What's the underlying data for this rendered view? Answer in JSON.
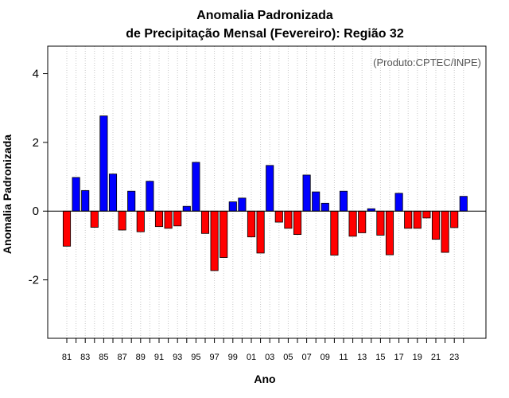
{
  "chart_data": {
    "type": "bar",
    "title": "Anomalia Padronizada",
    "subtitle": "de Precipitação Mensal (Fevereiro): Região 32",
    "xlabel": "Ano",
    "ylabel": "Anomalia Padronizada",
    "credit": "(Produto:CPTEC/INPE)",
    "ylim": [
      -3.7,
      4.8
    ],
    "yticks": [
      -2,
      0,
      2,
      4
    ],
    "ytick_labels": [
      "-2",
      "0",
      "2",
      "4"
    ],
    "grid": "vertical dotted",
    "colors": {
      "positive": "#0000ff",
      "negative": "#ff0000",
      "edge": "#000000",
      "grid": "#c8c8c8"
    },
    "categories": [
      "81",
      "82",
      "83",
      "84",
      "85",
      "86",
      "87",
      "88",
      "89",
      "90",
      "91",
      "92",
      "93",
      "94",
      "95",
      "96",
      "97",
      "98",
      "99",
      "00",
      "01",
      "02",
      "03",
      "04",
      "05",
      "06",
      "07",
      "08",
      "09",
      "10",
      "11",
      "12",
      "13",
      "14",
      "15",
      "16",
      "17",
      "18",
      "19",
      "20",
      "21",
      "22",
      "23",
      "24"
    ],
    "xtick_labels": [
      "81",
      "83",
      "85",
      "87",
      "89",
      "91",
      "93",
      "95",
      "97",
      "99",
      "01",
      "03",
      "05",
      "07",
      "09",
      "11",
      "13",
      "15",
      "17",
      "19",
      "21",
      "23"
    ],
    "values": [
      -1.02,
      0.98,
      0.6,
      -0.47,
      2.77,
      1.08,
      -0.55,
      0.58,
      -0.6,
      0.87,
      -0.45,
      -0.5,
      -0.43,
      0.14,
      1.42,
      -0.65,
      -1.73,
      -1.35,
      0.27,
      0.38,
      -0.75,
      -1.22,
      1.33,
      -0.32,
      -0.5,
      -0.68,
      1.05,
      0.56,
      0.23,
      -1.28,
      0.58,
      -0.73,
      -0.63,
      0.07,
      -0.7,
      -1.27,
      0.52,
      -0.5,
      -0.5,
      -0.2,
      -0.82,
      -1.2,
      -0.48,
      0.43
    ]
  }
}
